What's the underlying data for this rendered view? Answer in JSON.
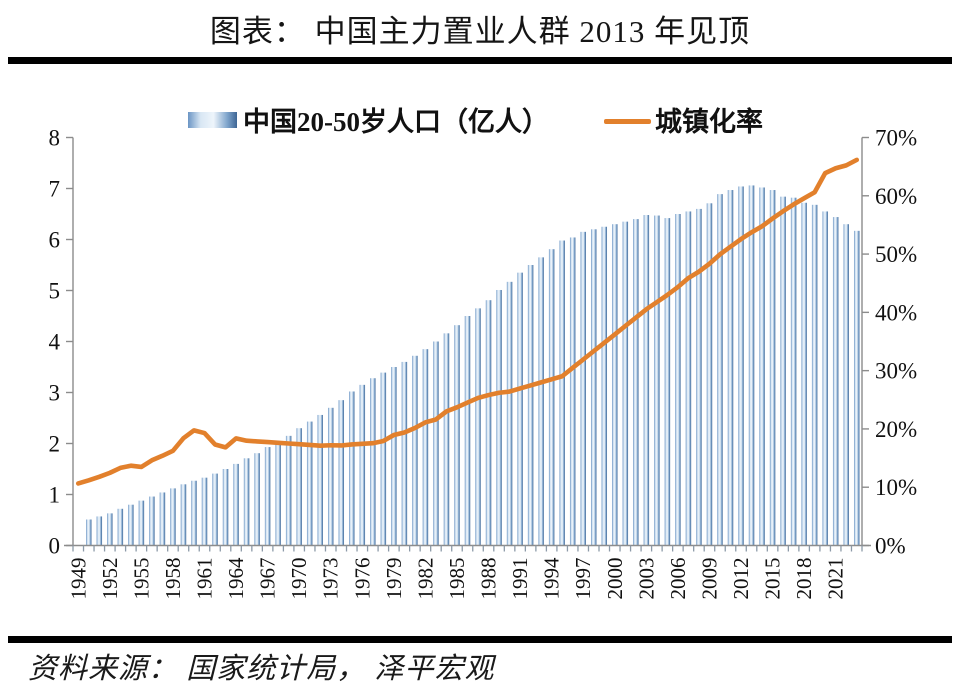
{
  "title": "图表： 中国主力置业人群 2013 年见顶",
  "source": "资料来源： 国家统计局， 泽平宏观",
  "legend": {
    "bars_label": "中国20-50岁人口（亿人）",
    "line_label": "城镇化率"
  },
  "colors": {
    "line": "#E2802C",
    "axis": "#8c8c8c",
    "tick": "#8c9aa8",
    "bar_gradient": [
      "#6b95c4",
      "#d9e7f4",
      "#eef5fb",
      "#7fa5cc",
      "#3f6695"
    ],
    "rule": "#000000",
    "text": "#111111"
  },
  "chart_data": {
    "type": "bar",
    "title": "图表： 中国主力置业人群 2013 年见顶",
    "x": [
      1949,
      1950,
      1951,
      1952,
      1953,
      1954,
      1955,
      1956,
      1957,
      1958,
      1959,
      1960,
      1961,
      1962,
      1963,
      1964,
      1965,
      1966,
      1967,
      1968,
      1969,
      1970,
      1971,
      1972,
      1973,
      1974,
      1975,
      1976,
      1977,
      1978,
      1979,
      1980,
      1981,
      1982,
      1983,
      1984,
      1985,
      1986,
      1987,
      1988,
      1989,
      1990,
      1991,
      1992,
      1993,
      1994,
      1995,
      1996,
      1997,
      1998,
      1999,
      2000,
      2001,
      2002,
      2003,
      2004,
      2005,
      2006,
      2007,
      2008,
      2009,
      2010,
      2011,
      2012,
      2013,
      2014,
      2015,
      2016,
      2017,
      2018,
      2019,
      2020,
      2021,
      2022,
      2023
    ],
    "x_tick_labels": [
      "1949",
      "1952",
      "1955",
      "1958",
      "1961",
      "1964",
      "1967",
      "1970",
      "1973",
      "1976",
      "1979",
      "1982",
      "1985",
      "1988",
      "1991",
      "1994",
      "1997",
      "2000",
      "2003",
      "2006",
      "2009",
      "2012",
      "2015",
      "2018",
      "2021"
    ],
    "series": [
      {
        "name": "中国20-50岁人口（亿人）",
        "type": "bar",
        "axis": "left",
        "values": [
          null,
          0.51,
          0.57,
          0.63,
          0.72,
          0.8,
          0.88,
          0.96,
          1.04,
          1.12,
          1.2,
          1.27,
          1.33,
          1.41,
          1.5,
          1.6,
          1.71,
          1.81,
          1.93,
          2.0,
          2.15,
          2.3,
          2.43,
          2.56,
          2.7,
          2.85,
          3.02,
          3.15,
          3.28,
          3.39,
          3.5,
          3.6,
          3.72,
          3.85,
          4.0,
          4.16,
          4.32,
          4.5,
          4.65,
          4.81,
          5.01,
          5.17,
          5.35,
          5.5,
          5.65,
          5.81,
          5.98,
          6.04,
          6.15,
          6.2,
          6.25,
          6.3,
          6.35,
          6.4,
          6.48,
          6.47,
          6.42,
          6.5,
          6.55,
          6.6,
          6.71,
          6.89,
          6.97,
          7.04,
          7.06,
          7.02,
          6.97,
          6.84,
          6.82,
          6.72,
          6.68,
          6.55,
          6.44,
          6.3,
          6.17
        ]
      },
      {
        "name": "城镇化率",
        "type": "line",
        "axis": "right",
        "values": [
          10.64,
          11.18,
          11.78,
          12.46,
          13.31,
          13.69,
          13.48,
          14.62,
          15.39,
          16.25,
          18.41,
          19.75,
          19.29,
          17.33,
          16.84,
          18.37,
          17.98,
          17.86,
          17.74,
          17.62,
          17.5,
          17.38,
          17.26,
          17.13,
          17.2,
          17.16,
          17.34,
          17.44,
          17.55,
          17.92,
          18.96,
          19.39,
          20.16,
          21.13,
          21.62,
          23.01,
          23.71,
          24.52,
          25.32,
          25.81,
          26.21,
          26.41,
          26.94,
          27.46,
          27.99,
          28.51,
          29.04,
          30.48,
          31.91,
          33.35,
          34.78,
          36.22,
          37.66,
          39.09,
          40.53,
          41.76,
          42.99,
          44.34,
          45.89,
          46.99,
          48.34,
          49.95,
          51.27,
          52.57,
          53.73,
          54.77,
          56.1,
          57.35,
          58.52,
          59.58,
          60.6,
          63.89,
          64.72,
          65.22,
          66.16
        ]
      }
    ],
    "left_axis": {
      "min": 0,
      "max": 8,
      "step": 1,
      "tick_labels": [
        "0",
        "1",
        "2",
        "3",
        "4",
        "5",
        "6",
        "7",
        "8"
      ]
    },
    "right_axis": {
      "min": 0,
      "max": 70,
      "step": 10,
      "tick_labels": [
        "0%",
        "10%",
        "20%",
        "30%",
        "40%",
        "50%",
        "60%",
        "70%"
      ]
    },
    "grid": false,
    "legend_position": "top"
  }
}
